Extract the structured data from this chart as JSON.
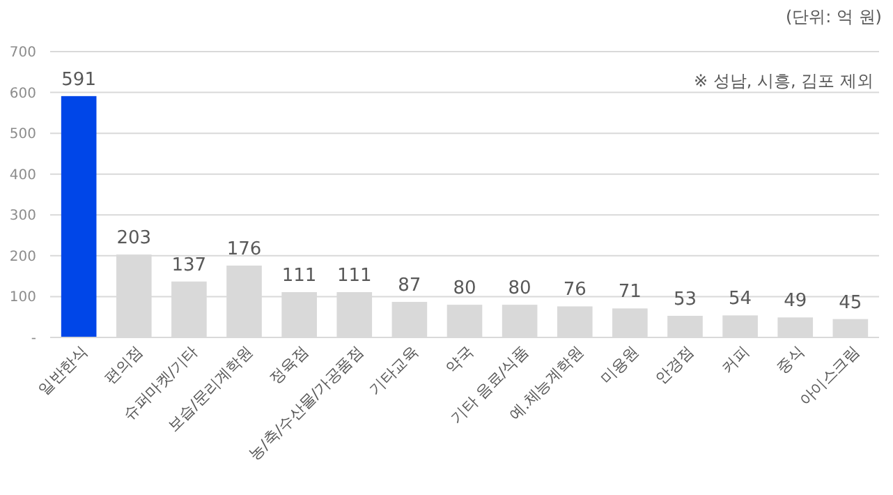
{
  "chart_data": {
    "type": "bar",
    "categories": [
      "일반한식",
      "편의점",
      "슈퍼마켓/기타",
      "보습/문리계학원",
      "정육점",
      "농/축/수산물/가공품점",
      "기타교육",
      "약국",
      "기타 음료/식품",
      "예.체능계학원",
      "미용원",
      "안경점",
      "커피",
      "중식",
      "아이스크림"
    ],
    "values": [
      591,
      203,
      137,
      176,
      111,
      111,
      87,
      80,
      80,
      76,
      71,
      53,
      54,
      49,
      45
    ],
    "colors": [
      "#0046e8",
      "#d9d9d9",
      "#d9d9d9",
      "#d9d9d9",
      "#d9d9d9",
      "#d9d9d9",
      "#d9d9d9",
      "#d9d9d9",
      "#d9d9d9",
      "#d9d9d9",
      "#d9d9d9",
      "#d9d9d9",
      "#d9d9d9",
      "#d9d9d9",
      "#d9d9d9"
    ],
    "ylim": [
      0,
      700
    ],
    "yticks": [
      {
        "value": 0,
        "label": "-"
      },
      100,
      200,
      300,
      400,
      500,
      600,
      700
    ],
    "grid": "y",
    "data_labels": true,
    "annotations": [
      "(단위: 억 원)",
      "※ 성남, 시흥, 김포 제외"
    ]
  }
}
